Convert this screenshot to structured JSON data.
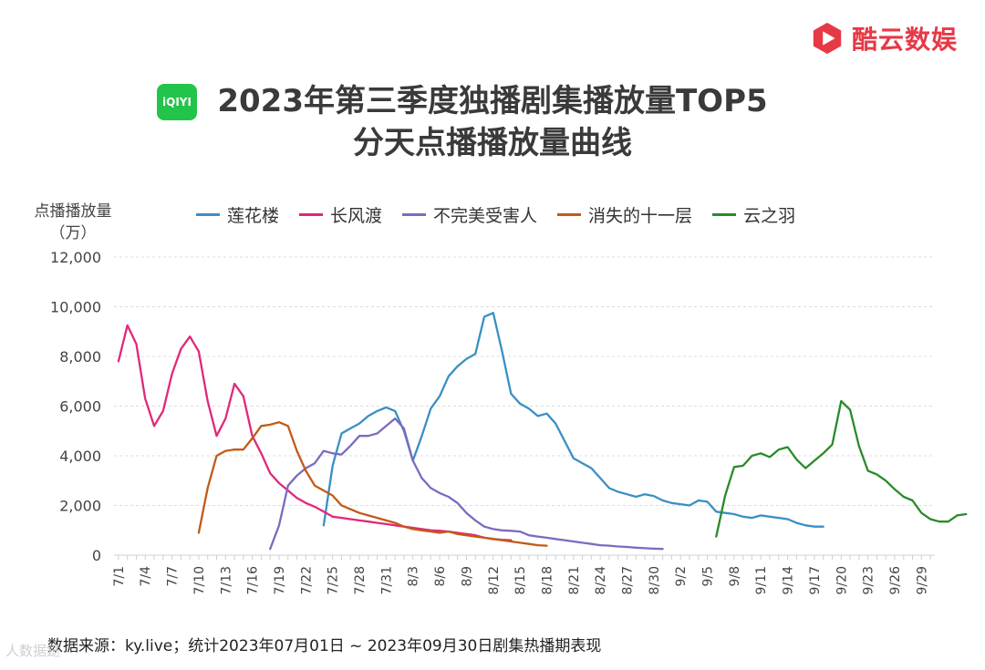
{
  "brand": {
    "name": "酷云数娱",
    "icon": "play-logo-icon",
    "color": "#e63946"
  },
  "logo": {
    "text": "iQIYI",
    "icon": "iqiyi-logo-icon",
    "color": "#22c44a"
  },
  "title": {
    "line1": "2023年第三季度独播剧集播放量TOP5",
    "line2": "分天点播播放量曲线"
  },
  "source": "数据来源：ky.live；统计2023年07月01日 ~ 2023年09月30日剧集热播期表现",
  "watermark": "人数据鎹",
  "chart_data": {
    "type": "line",
    "ylabel_line1": "点播播放量",
    "ylabel_line2": "（万）",
    "ylim": [
      0,
      12000
    ],
    "yticks": [
      0,
      2000,
      4000,
      6000,
      8000,
      10000,
      12000
    ],
    "ytick_labels": [
      "0",
      "2,000",
      "4,000",
      "6,000",
      "8,000",
      "10,000",
      "12,000"
    ],
    "x_day_count": 92,
    "x_tick_days": [
      0,
      3,
      6,
      9,
      12,
      15,
      18,
      21,
      24,
      27,
      30,
      33,
      36,
      39,
      42,
      45,
      48,
      51,
      54,
      57,
      60,
      63,
      66,
      69,
      72,
      75,
      78,
      81,
      84,
      87,
      90
    ],
    "x_tick_labels": [
      "7/1",
      "7/4",
      "7/7",
      "7/10",
      "7/13",
      "7/16",
      "7/19",
      "7/22",
      "7/25",
      "7/28",
      "7/31",
      "8/3",
      "8/6",
      "8/9",
      "8/12",
      "8/15",
      "8/18",
      "8/21",
      "8/24",
      "8/27",
      "8/30",
      "9/2",
      "9/5",
      "9/8",
      "9/11",
      "9/14",
      "9/17",
      "9/20",
      "9/23",
      "9/26",
      "9/29"
    ],
    "grid": "horizontal",
    "legend_position": "top",
    "series": [
      {
        "name": "莲花楼",
        "color": "#3a8fc4",
        "start_day": 23,
        "values": [
          1200,
          3600,
          4900,
          5100,
          5300,
          5600,
          5800,
          5950,
          5800,
          5000,
          3800,
          4800,
          5900,
          6400,
          7200,
          7600,
          7900,
          8100,
          9600,
          9750,
          8200,
          6500,
          6100,
          5900,
          5600,
          5700,
          5300,
          4600,
          3900,
          3700,
          3500,
          3100,
          2700,
          2550,
          2450,
          2350,
          2450,
          2380,
          2200,
          2100,
          2050,
          2000,
          2200,
          2150,
          1750,
          1700,
          1650,
          1550,
          1500,
          1600,
          1550,
          1500,
          1450,
          1300,
          1200,
          1150,
          1150
        ]
      },
      {
        "name": "长风渡",
        "color": "#e0287a",
        "start_day": 0,
        "values": [
          7800,
          9250,
          8500,
          6300,
          5200,
          5800,
          7300,
          8300,
          8800,
          8200,
          6200,
          4800,
          5500,
          6900,
          6400,
          4800,
          4100,
          3300,
          2900,
          2600,
          2300,
          2100,
          1950,
          1750,
          1550,
          1500,
          1450,
          1400,
          1350,
          1300,
          1250,
          1200,
          1150,
          1100,
          1050,
          1000,
          980,
          950,
          900,
          850,
          800,
          700,
          650,
          620,
          600
        ]
      },
      {
        "name": "不完美受害人",
        "color": "#7b6bbf",
        "start_day": 17,
        "values": [
          250,
          1200,
          2800,
          3200,
          3500,
          3700,
          4200,
          4100,
          4050,
          4400,
          4800,
          4800,
          4900,
          5200,
          5500,
          5100,
          3800,
          3100,
          2700,
          2500,
          2350,
          2100,
          1700,
          1400,
          1150,
          1050,
          1000,
          980,
          950,
          800,
          750,
          700,
          650,
          600,
          550,
          500,
          450,
          400,
          380,
          350,
          330,
          300,
          280,
          260,
          250
        ]
      },
      {
        "name": "消失的十一层",
        "color": "#c25a18",
        "start_day": 9,
        "values": [
          900,
          2700,
          4000,
          4200,
          4250,
          4250,
          4700,
          5200,
          5250,
          5350,
          5200,
          4200,
          3400,
          2800,
          2600,
          2400,
          2000,
          1850,
          1700,
          1600,
          1500,
          1400,
          1300,
          1150,
          1050,
          1000,
          950,
          900,
          950,
          850,
          800,
          750,
          700,
          650,
          600,
          550,
          500,
          450,
          400,
          380
        ]
      },
      {
        "name": "云之羽",
        "color": "#2a8a2a",
        "start_day": 67,
        "values": [
          750,
          2400,
          3550,
          3600,
          4000,
          4100,
          3950,
          4250,
          4350,
          3850,
          3500,
          3800,
          4100,
          4450,
          6200,
          5850,
          4400,
          3400,
          3250,
          3000,
          2650,
          2350,
          2200,
          1700,
          1450,
          1350,
          1350,
          1600,
          1650
        ]
      }
    ]
  }
}
